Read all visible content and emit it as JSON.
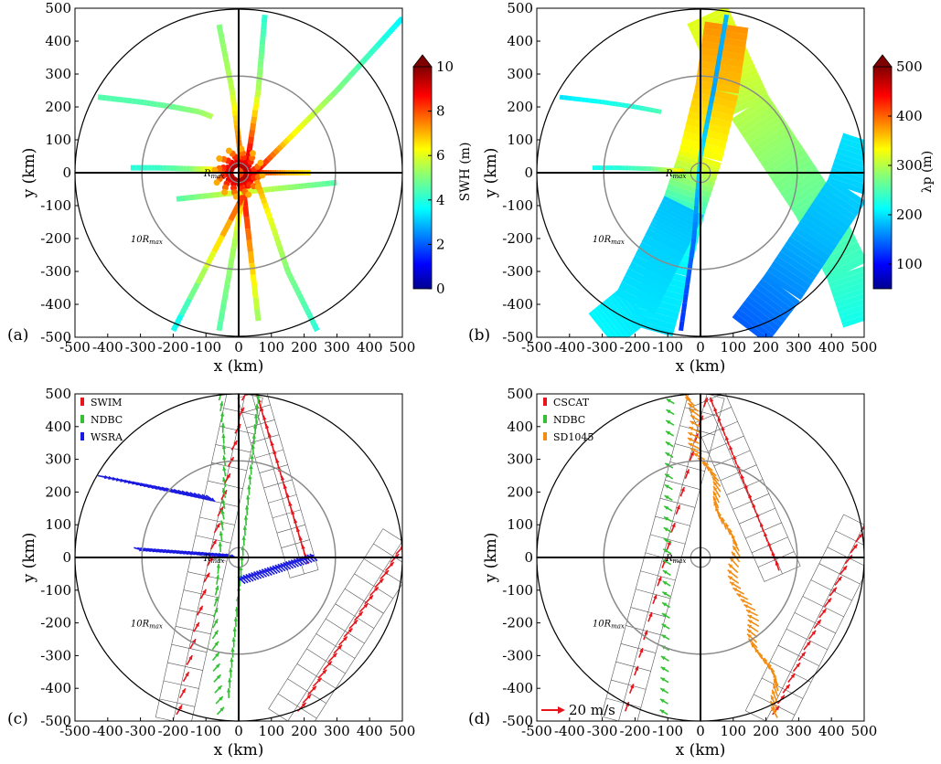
{
  "chart_data": [
    {
      "panel": "(a)",
      "type": "scatter",
      "xlabel": "x (km)",
      "ylabel": "y (km)",
      "xlim": [
        -500,
        500
      ],
      "ylim": [
        -500,
        500
      ],
      "xticks": [
        "-500",
        "-400",
        "-300",
        "-200",
        "-100",
        "0",
        "100",
        "200",
        "300",
        "400",
        "500"
      ],
      "yticks": [
        "-500",
        "-400",
        "-300",
        "-200",
        "-100",
        "0",
        "100",
        "200",
        "300",
        "400",
        "500"
      ],
      "circle_labels": [
        "R_max",
        "10R_max"
      ],
      "colorbar": {
        "label": "SWH (m)",
        "range": [
          0,
          10
        ],
        "ticks": [
          "0",
          "2",
          "4",
          "6",
          "8",
          "10"
        ]
      },
      "tracks": [
        {
          "name": "",
          "x": [
            -430,
            -300,
            -200,
            -120,
            -80
          ],
          "y": [
            230,
            215,
            200,
            185,
            170
          ],
          "c": [
            4.5,
            4.5,
            4.8,
            5.2,
            5.5
          ]
        },
        {
          "name": "",
          "x": [
            -330,
            -250,
            -150,
            -80,
            -20
          ],
          "y": [
            15,
            15,
            12,
            10,
            5
          ],
          "c": [
            4.0,
            4.2,
            5.0,
            6.5,
            9.0
          ]
        },
        {
          "name": "",
          "x": [
            20,
            80,
            150,
            220
          ],
          "y": [
            0,
            0,
            0,
            0
          ],
          "c": [
            9.5,
            8.0,
            7.0,
            6.5
          ]
        },
        {
          "name": "",
          "x": [
            -60,
            -20,
            0,
            20,
            60
          ],
          "y": [
            450,
            250,
            100,
            -100,
            -450
          ],
          "c": [
            5.0,
            5.6,
            7.5,
            8.5,
            5.2
          ]
        },
        {
          "name": "",
          "x": [
            80,
            60,
            30,
            -10,
            -60
          ],
          "y": [
            480,
            250,
            50,
            -200,
            -480
          ],
          "c": [
            4.0,
            5.5,
            9.0,
            5.5,
            4.5
          ]
        },
        {
          "name": "",
          "x": [
            500,
            300,
            150,
            50,
            -200
          ],
          "y": [
            470,
            250,
            100,
            0,
            -480
          ],
          "c": [
            3.5,
            5.0,
            6.5,
            9.0,
            3.5
          ]
        },
        {
          "name": "",
          "x": [
            -190,
            0,
            100,
            200,
            300
          ],
          "y": [
            -80,
            -60,
            -50,
            -40,
            -30
          ],
          "c": [
            4.5,
            6.0,
            5.5,
            5.0,
            4.5
          ]
        },
        {
          "name": "",
          "x": [
            50,
            100,
            150,
            200,
            240
          ],
          "y": [
            -10,
            -150,
            -300,
            -400,
            -480
          ],
          "c": [
            7.5,
            6.0,
            5.0,
            4.5,
            4.0
          ]
        }
      ]
    },
    {
      "panel": "(b)",
      "type": "scatter",
      "xlabel": "x (km)",
      "ylabel": "y (km)",
      "xlim": [
        -500,
        500
      ],
      "ylim": [
        -500,
        500
      ],
      "xticks": [
        "-500",
        "-400",
        "-300",
        "-200",
        "-100",
        "0",
        "100",
        "200",
        "300",
        "400",
        "500"
      ],
      "yticks": [
        "-500",
        "-400",
        "-300",
        "-200",
        "-100",
        "0",
        "100",
        "200",
        "300",
        "400",
        "500"
      ],
      "circle_labels": [
        "R_max",
        "10R_max"
      ],
      "colorbar": {
        "label": "λp (m)",
        "range": [
          50,
          500
        ],
        "ticks": [
          "100",
          "200",
          "300",
          "400",
          "500"
        ]
      },
      "swaths": [
        {
          "x": [
            20,
            80,
            150,
            250,
            350,
            450,
            500
          ],
          "y": [
            480,
            350,
            200,
            50,
            -100,
            -300,
            -450
          ],
          "c": [
            320,
            320,
            300,
            280,
            260,
            240,
            220
          ]
        },
        {
          "x": [
            -150,
            -100,
            -50,
            0,
            50,
            80
          ],
          "y": [
            -480,
            -300,
            -100,
            50,
            250,
            450
          ],
          "c": [
            200,
            205,
            240,
            330,
            360,
            380
          ]
        },
        {
          "x": [
            150,
            250,
            350,
            450,
            500
          ],
          "y": [
            -480,
            -350,
            -200,
            -50,
            100
          ],
          "c": [
            140,
            160,
            180,
            190,
            200
          ]
        },
        {
          "x": [
            -300,
            -200,
            -100,
            -50
          ],
          "y": [
            -480,
            -400,
            -200,
            -100
          ],
          "c": [
            210,
            200,
            190,
            185
          ]
        }
      ],
      "tracks": [
        {
          "x": [
            -430,
            -300,
            -200,
            -120
          ],
          "y": [
            230,
            215,
            200,
            185
          ],
          "c": [
            200,
            220,
            230,
            250
          ]
        },
        {
          "x": [
            -330,
            -250,
            -150,
            -50
          ],
          "y": [
            15,
            15,
            12,
            5
          ],
          "c": [
            220,
            230,
            260,
            350
          ]
        },
        {
          "x": [
            80,
            40,
            0,
            -20,
            -60
          ],
          "y": [
            480,
            250,
            50,
            -200,
            -480
          ],
          "c": [
            180,
            170,
            200,
            150,
            120
          ]
        }
      ]
    },
    {
      "panel": "(c)",
      "type": "quiver",
      "xlabel": "x (km)",
      "ylabel": "y (km)",
      "xlim": [
        -500,
        500
      ],
      "ylim": [
        -500,
        500
      ],
      "xticks": [
        "-500",
        "-400",
        "-300",
        "-200",
        "-100",
        "0",
        "100",
        "200",
        "300",
        "400",
        "500"
      ],
      "yticks": [
        "-500",
        "-400",
        "-300",
        "-200",
        "-100",
        "0",
        "100",
        "200",
        "300",
        "400",
        "500"
      ],
      "circle_labels": [
        "R_max",
        "10R_max"
      ],
      "legend": [
        {
          "name": "SWIM",
          "color": "#e8141b"
        },
        {
          "name": "NDBC",
          "color": "#33c033"
        },
        {
          "name": "WSRA",
          "color": "#1a1ae0"
        }
      ],
      "legend_position": "top-left"
    },
    {
      "panel": "(d)",
      "type": "quiver",
      "xlabel": "x (km)",
      "ylabel": "y (km)",
      "xlim": [
        -500,
        500
      ],
      "ylim": [
        -500,
        500
      ],
      "xticks": [
        "-500",
        "-400",
        "-300",
        "-200",
        "-100",
        "0",
        "100",
        "200",
        "300",
        "400",
        "500"
      ],
      "yticks": [
        "-500",
        "-400",
        "-300",
        "-200",
        "-100",
        "0",
        "100",
        "200",
        "300",
        "400",
        "500"
      ],
      "circle_labels": [
        "R_max",
        "10R_max"
      ],
      "legend": [
        {
          "name": "CSCAT",
          "color": "#e8141b"
        },
        {
          "name": "NDBC",
          "color": "#33c033"
        },
        {
          "name": "SD1045",
          "color": "#f28c12"
        }
      ],
      "legend_position": "top-left",
      "scale_arrow": "20 m/s"
    }
  ]
}
